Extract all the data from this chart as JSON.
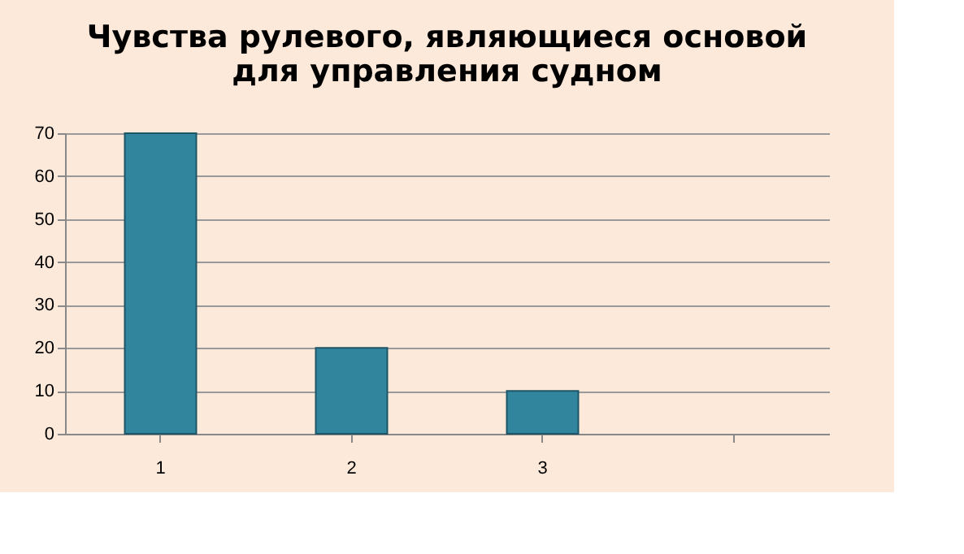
{
  "chart_data": {
    "type": "bar",
    "title": "Чувства рулевого, являющиеся основой\nдля управления судном",
    "categories": [
      "1",
      "2",
      "3",
      null
    ],
    "values": [
      70,
      20,
      10,
      null
    ],
    "color": "#31859c",
    "ylim": [
      0,
      70
    ],
    "yticks": [
      0,
      10,
      20,
      30,
      40,
      50,
      60,
      70
    ],
    "grid": "y"
  }
}
